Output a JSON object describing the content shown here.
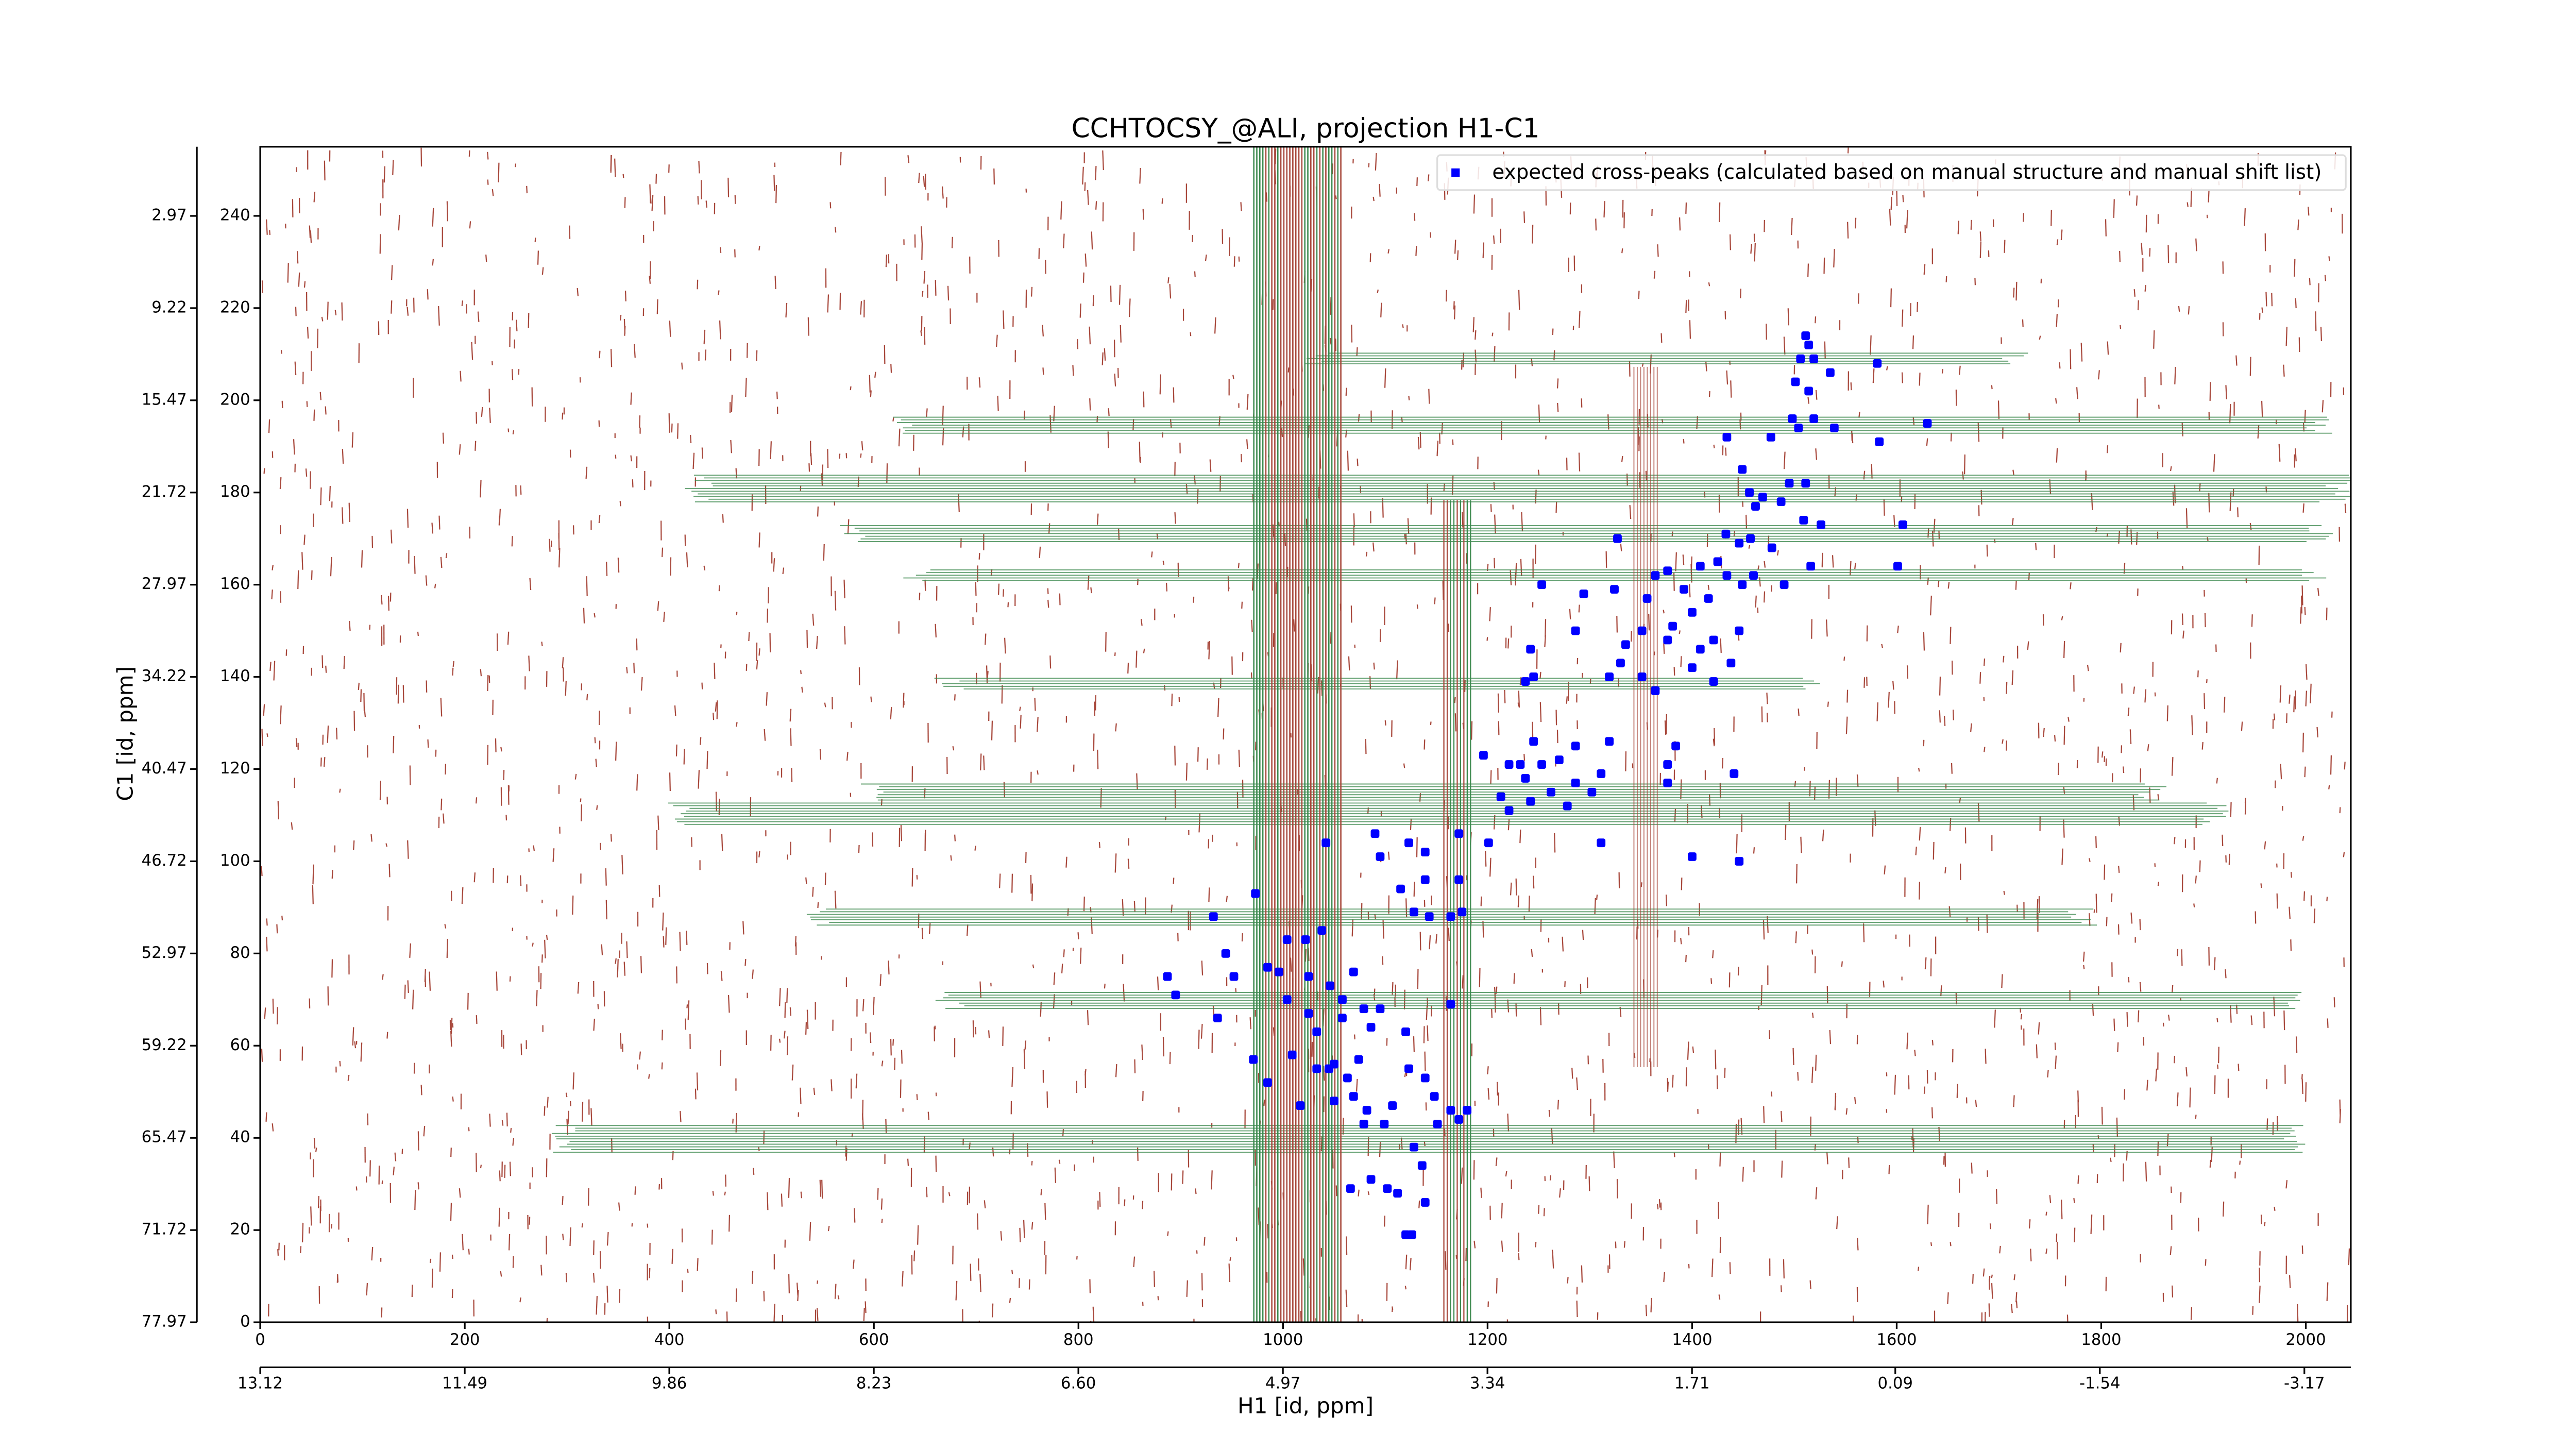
{
  "chart_data": {
    "type": "scatter",
    "title": "CCHTOCSY_@ALI, projection H1-C1",
    "xlabel": "H1 [id, ppm]",
    "ylabel": "C1 [id, ppm]",
    "xlim": [
      0,
      2044
    ],
    "xticks": [
      0,
      200,
      400,
      600,
      800,
      1000,
      1200,
      1400,
      1600,
      1800,
      2000
    ],
    "x2lim": [
      13.12,
      -3.54
    ],
    "x2ticks": [
      13.12,
      11.49,
      9.86,
      8.23,
      {
        "value": 6.6,
        "label": "6.60"
      },
      4.97,
      3.34,
      1.71,
      0.09,
      -1.54,
      -3.17
    ],
    "ylim": [
      0,
      255
    ],
    "yticks": [
      0,
      20,
      40,
      60,
      80,
      100,
      120,
      140,
      160,
      180,
      200,
      220,
      240
    ],
    "y2lim": [
      77.97,
      -1.72
    ],
    "y2ticks": [
      77.97,
      71.72,
      65.47,
      59.22,
      52.97,
      46.72,
      40.47,
      34.22,
      27.97,
      21.72,
      15.47,
      9.22,
      2.97
    ],
    "legend": "upper right",
    "series": [
      {
        "name": "expected cross-peaks (calculated based on manual structure and manual shift list)",
        "color": "#0000ff",
        "x": [
          1511,
          1514,
          1506,
          1519,
          1581,
          1535,
          1501,
          1514,
          1434,
          1498,
          1504,
          1519,
          1539,
          1477,
          1583,
          1630,
          1449,
          1456,
          1469,
          1462,
          1495,
          1511,
          1487,
          1509,
          1526,
          1606,
          1516,
          1601,
          1327,
          1433,
          1446,
          1457,
          1425,
          1408,
          1376,
          1364,
          1392,
          1434,
          1449,
          1460,
          1490,
          1416,
          1400,
          1381,
          1356,
          1324,
          1294,
          1253,
          1478,
          1421,
          1376,
          1351,
          1335,
          1330,
          1319,
          1351,
          1400,
          1421,
          1364,
          1438,
          1446,
          1408,
          1242,
          1286,
          1245,
          1237,
          1196,
          1221,
          1237,
          1253,
          1270,
          1286,
          1262,
          1242,
          1221,
          1278,
          1302,
          1311,
          1376,
          1441,
          1384,
          1376,
          1319,
          1245,
          1311,
          1400,
          1446,
          1286,
          1213,
          1232,
          1042,
          1090,
          1095,
          1123,
          1139,
          1172,
          1115,
          1139,
          1172,
          1128,
          1143,
          1164,
          1175,
          1201,
          932,
          973,
          944,
          952,
          887,
          895,
          936,
          985,
          996,
          1004,
          1004,
          1022,
          1038,
          1025,
          1046,
          1058,
          1069,
          1025,
          1033,
          1058,
          1079,
          1086,
          1095,
          1074,
          1063,
          1050,
          1033,
          1009,
          971,
          985,
          1017,
          1050,
          1069,
          1082,
          1107,
          1123,
          1139,
          1148,
          1164,
          1172,
          1180,
          1151,
          1079,
          1099,
          1128,
          1136,
          1164,
          1120,
          1102,
          1112,
          1086,
          1139,
          1120,
          1126,
          1066,
          1045
        ],
        "values": [
          214,
          212,
          209,
          209,
          208,
          206,
          204,
          202,
          192,
          196,
          194,
          196,
          194,
          192,
          191,
          195,
          185,
          180,
          179,
          177,
          182,
          182,
          178,
          174,
          173,
          173,
          164,
          164,
          170,
          171,
          169,
          170,
          165,
          164,
          163,
          162,
          159,
          162,
          160,
          162,
          160,
          157,
          154,
          151,
          157,
          159,
          158,
          160,
          168,
          148,
          148,
          150,
          147,
          143,
          140,
          140,
          142,
          139,
          137,
          143,
          150,
          146,
          146,
          150,
          140,
          139,
          123,
          121,
          118,
          121,
          122,
          117,
          115,
          113,
          111,
          112,
          115,
          119,
          117,
          119,
          125,
          121,
          126,
          126,
          104,
          101,
          100,
          125,
          114,
          121,
          104,
          106,
          101,
          104,
          102,
          106,
          94,
          96,
          96,
          89,
          88,
          88,
          89,
          104,
          88,
          93,
          80,
          75,
          75,
          71,
          66,
          77,
          76,
          70,
          83,
          83,
          85,
          75,
          73,
          70,
          76,
          67,
          63,
          66,
          68,
          64,
          68,
          57,
          53,
          56,
          55,
          58,
          57,
          52,
          47,
          48,
          49,
          46,
          47,
          55,
          53,
          49,
          46,
          44,
          46,
          43,
          43,
          43,
          38,
          34,
          69,
          63,
          29,
          28,
          31,
          26,
          19,
          19,
          29,
          55
        ]
      }
    ]
  }
}
